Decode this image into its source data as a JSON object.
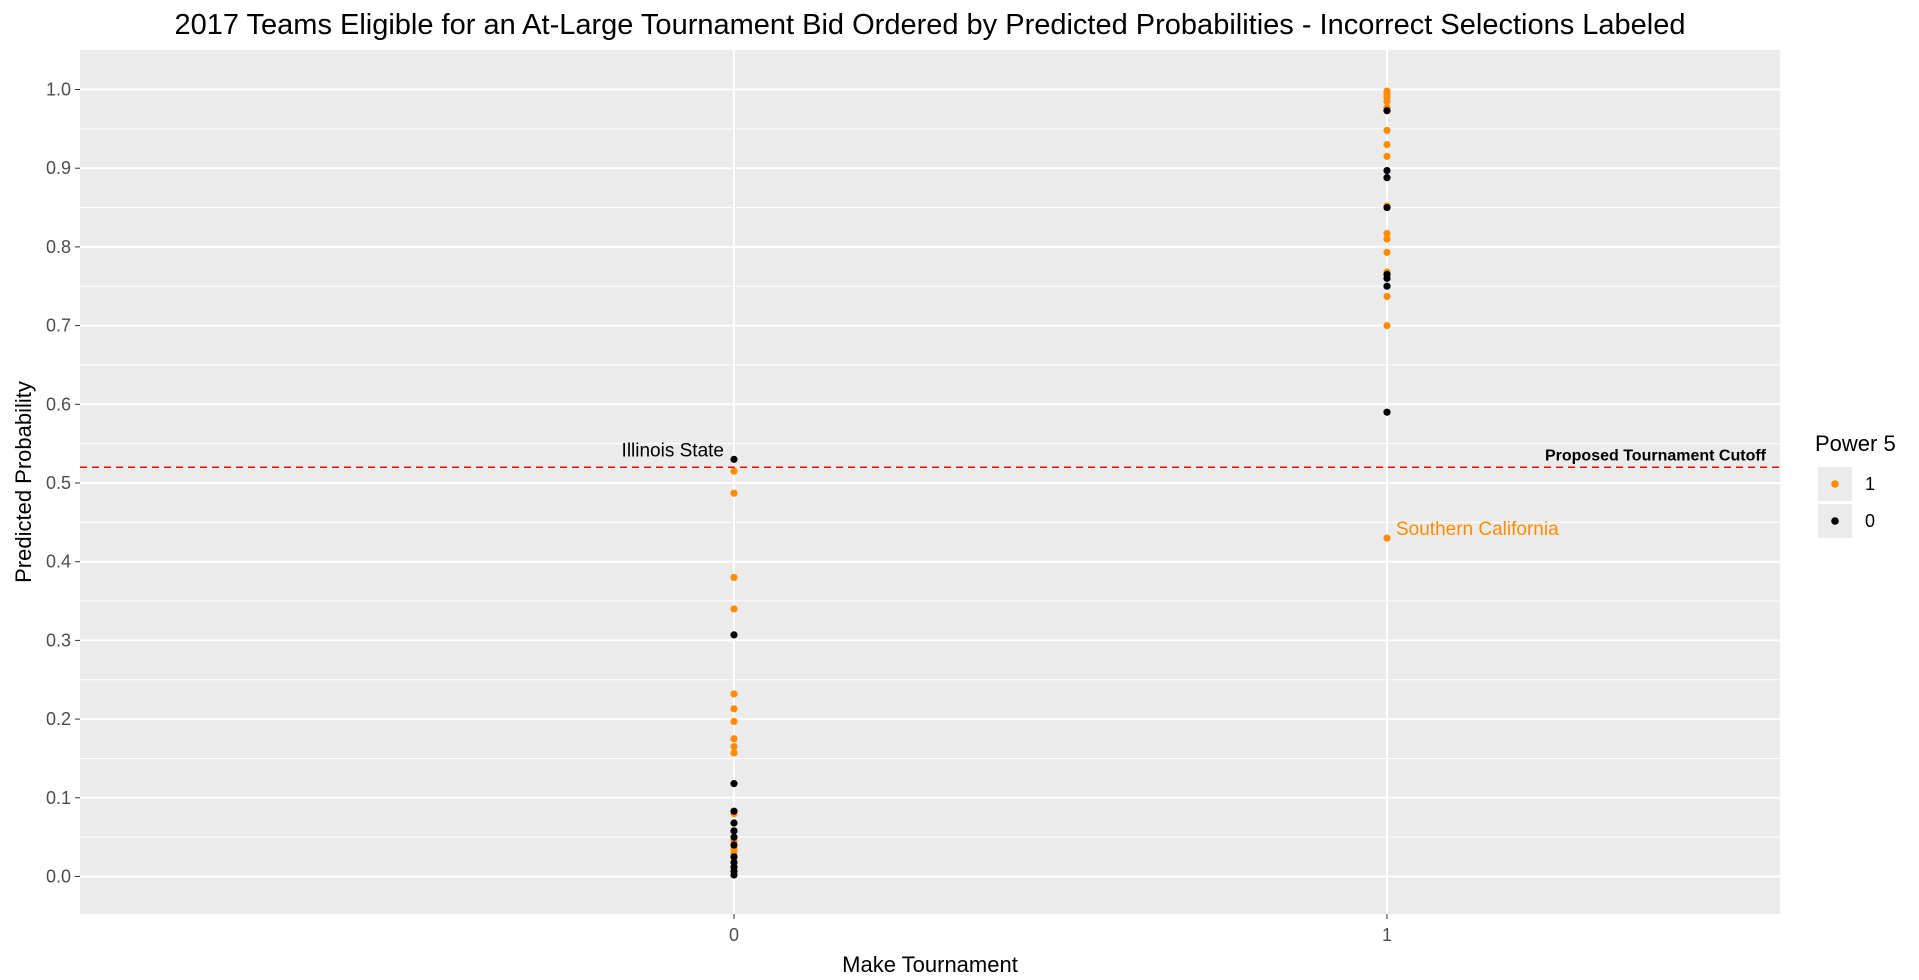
{
  "chart_data": {
    "type": "scatter",
    "title": "2017 Teams Eligible for an At-Large Tournament Bid Ordered by Predicted Probabilities - Incorrect Selections Labeled",
    "xlabel": "Make Tournament",
    "ylabel": "Predicted Probability",
    "x_categories": [
      "0",
      "1"
    ],
    "y_ticks": [
      "0.0",
      "0.1",
      "0.2",
      "0.3",
      "0.4",
      "0.5",
      "0.6",
      "0.7",
      "0.8",
      "0.9",
      "1.0"
    ],
    "ylim": [
      -0.05,
      1.05
    ],
    "grid": true,
    "legend": {
      "title": "Power 5",
      "placement": "right",
      "entries": [
        {
          "label": "1",
          "color": "#ff8c00"
        },
        {
          "label": "0",
          "color": "#000000"
        }
      ]
    },
    "cutoff": {
      "value": 0.52,
      "label": "Proposed Tournament Cutoff",
      "color": "#ff0000"
    },
    "annotations": [
      {
        "text": "Illinois State",
        "x": "0",
        "y": 0.53,
        "color": "#000000",
        "side": "left"
      },
      {
        "text": "Southern California",
        "x": "1",
        "y": 0.43,
        "color": "#ff8c00",
        "side": "right"
      }
    ],
    "series": [
      {
        "name": "1",
        "color": "#ff8c00",
        "points": [
          {
            "x": "0",
            "y": 0.515
          },
          {
            "x": "0",
            "y": 0.487
          },
          {
            "x": "0",
            "y": 0.38
          },
          {
            "x": "0",
            "y": 0.34
          },
          {
            "x": "0",
            "y": 0.232
          },
          {
            "x": "0",
            "y": 0.213
          },
          {
            "x": "0",
            "y": 0.197
          },
          {
            "x": "0",
            "y": 0.175
          },
          {
            "x": "0",
            "y": 0.165
          },
          {
            "x": "0",
            "y": 0.157
          },
          {
            "x": "0",
            "y": 0.08
          },
          {
            "x": "0",
            "y": 0.045
          },
          {
            "x": "0",
            "y": 0.035
          },
          {
            "x": "0",
            "y": 0.03
          },
          {
            "x": "1",
            "y": 0.998
          },
          {
            "x": "1",
            "y": 0.994
          },
          {
            "x": "1",
            "y": 0.99
          },
          {
            "x": "1",
            "y": 0.985
          },
          {
            "x": "1",
            "y": 0.977
          },
          {
            "x": "1",
            "y": 0.948
          },
          {
            "x": "1",
            "y": 0.93
          },
          {
            "x": "1",
            "y": 0.915
          },
          {
            "x": "1",
            "y": 0.852
          },
          {
            "x": "1",
            "y": 0.817
          },
          {
            "x": "1",
            "y": 0.81
          },
          {
            "x": "1",
            "y": 0.793
          },
          {
            "x": "1",
            "y": 0.768
          },
          {
            "x": "1",
            "y": 0.737
          },
          {
            "x": "1",
            "y": 0.7
          },
          {
            "x": "1",
            "y": 0.43
          }
        ]
      },
      {
        "name": "0",
        "color": "#000000",
        "points": [
          {
            "x": "0",
            "y": 0.53
          },
          {
            "x": "0",
            "y": 0.307
          },
          {
            "x": "0",
            "y": 0.118
          },
          {
            "x": "0",
            "y": 0.083
          },
          {
            "x": "0",
            "y": 0.068
          },
          {
            "x": "0",
            "y": 0.058
          },
          {
            "x": "0",
            "y": 0.05
          },
          {
            "x": "0",
            "y": 0.04
          },
          {
            "x": "0",
            "y": 0.025
          },
          {
            "x": "0",
            "y": 0.018
          },
          {
            "x": "0",
            "y": 0.012
          },
          {
            "x": "0",
            "y": 0.007
          },
          {
            "x": "0",
            "y": 0.002
          },
          {
            "x": "1",
            "y": 0.973
          },
          {
            "x": "1",
            "y": 0.897
          },
          {
            "x": "1",
            "y": 0.888
          },
          {
            "x": "1",
            "y": 0.85
          },
          {
            "x": "1",
            "y": 0.765
          },
          {
            "x": "1",
            "y": 0.76
          },
          {
            "x": "1",
            "y": 0.75
          },
          {
            "x": "1",
            "y": 0.59
          }
        ]
      }
    ]
  }
}
